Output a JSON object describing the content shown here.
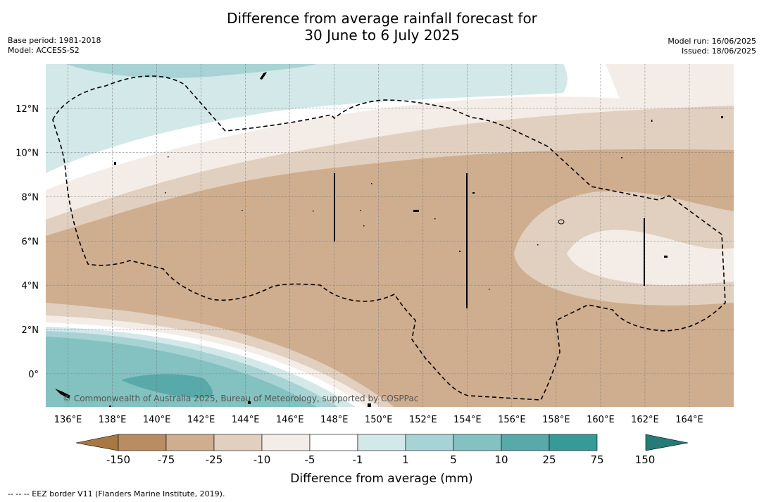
{
  "title_line1": "Difference from average rainfall forecast for",
  "title_line2": "30 June to 6 July 2025",
  "base_period": "Base period: 1981-2018",
  "model": "Model: ACCESS-S2",
  "model_run": "Model run: 16/06/2025",
  "issued": "Issued: 18/06/2025",
  "credit": "© Commonwealth of Australia 2025, Bureau of Meteorology, supported by COSPPac",
  "footer": "-- -- -- EEZ border V11 (Flanders Marine Institute, 2019).",
  "map": {
    "lon_range": [
      135,
      166
    ],
    "lat_range": [
      -1.5,
      14
    ],
    "lon_ticks": [
      "136°E",
      "138°E",
      "140°E",
      "142°E",
      "144°E",
      "146°E",
      "148°E",
      "150°E",
      "152°E",
      "154°E",
      "156°E",
      "158°E",
      "160°E",
      "162°E",
      "164°E"
    ],
    "lat_ticks": [
      "0°",
      "2°N",
      "4°N",
      "6°N",
      "8°N",
      "10°N",
      "12°N"
    ]
  },
  "colorbar": {
    "title": "Difference from average (mm)",
    "tick_labels": [
      "-150",
      "-75",
      "-25",
      "-10",
      "-5",
      "-1",
      "1",
      "5",
      "10",
      "25",
      "75",
      "150"
    ],
    "colors": [
      "#a87843",
      "#b98c62",
      "#cfae8f",
      "#e1d0bf",
      "#f4ede7",
      "#ffffff",
      "#d3e8e8",
      "#a7d3d4",
      "#84c1c1",
      "#58a9a9",
      "#359a98",
      "#247b78"
    ]
  }
}
